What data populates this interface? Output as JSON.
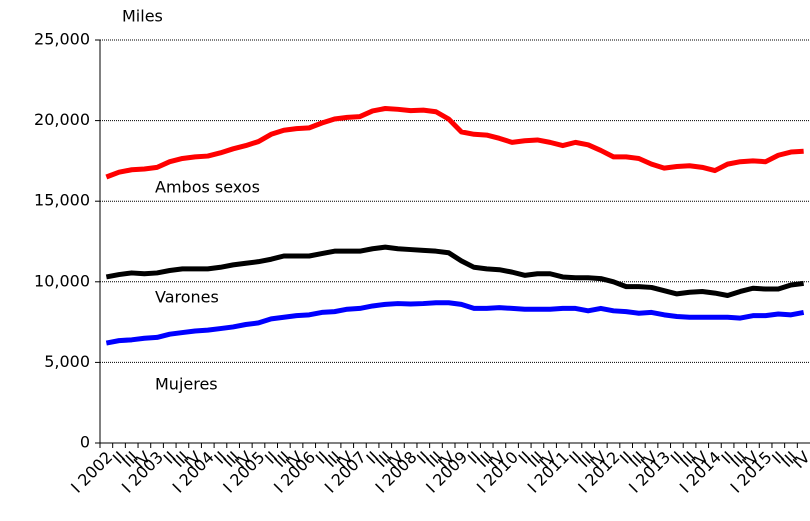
{
  "chart_data": {
    "type": "line",
    "ylabel": "Miles",
    "categories": [
      "I 2002",
      "II",
      "III",
      "IV",
      "I 2003",
      "II",
      "III",
      "IV",
      "I 2004",
      "II",
      "III",
      "IV",
      "I 2005",
      "II",
      "III",
      "IV",
      "I 2006",
      "II",
      "III",
      "IV",
      "I 2007",
      "II",
      "III",
      "IV",
      "I 2008",
      "II",
      "III",
      "IV",
      "I 2009",
      "II",
      "III",
      "IV",
      "I 2010",
      "II",
      "III",
      "IV",
      "I 2011",
      "II",
      "III",
      "IV",
      "I 2012",
      "II",
      "III",
      "IV",
      "I 2013",
      "II",
      "III",
      "IV",
      "I 2014",
      "II",
      "III",
      "IV",
      "I 2015",
      "II",
      "III",
      "IV"
    ],
    "series": [
      {
        "name": "Ambos sexos",
        "color": "#ff0000",
        "values": [
          16500,
          16800,
          16950,
          17000,
          17100,
          17450,
          17650,
          17750,
          17800,
          18000,
          18250,
          18450,
          18700,
          19150,
          19400,
          19500,
          19550,
          19850,
          20100,
          20200,
          20250,
          20600,
          20750,
          20700,
          20620,
          20650,
          20550,
          20100,
          19300,
          19150,
          19100,
          18900,
          18650,
          18750,
          18800,
          18650,
          18450,
          18650,
          18500,
          18150,
          17750,
          17750,
          17650,
          17300,
          17050,
          17150,
          17200,
          17100,
          16900,
          17300,
          17450,
          17500,
          17450,
          17850,
          18050,
          18100
        ]
      },
      {
        "name": "Varones",
        "color": "#000000",
        "values": [
          10300,
          10450,
          10550,
          10500,
          10550,
          10700,
          10800,
          10800,
          10800,
          10900,
          11050,
          11150,
          11250,
          11400,
          11600,
          11600,
          11600,
          11750,
          11900,
          11900,
          11900,
          12050,
          12150,
          12050,
          12000,
          11950,
          11900,
          11800,
          11300,
          10900,
          10800,
          10750,
          10600,
          10400,
          10500,
          10500,
          10300,
          10250,
          10250,
          10200,
          10000,
          9700,
          9700,
          9650,
          9450,
          9250,
          9350,
          9400,
          9300,
          9150,
          9400,
          9600,
          9550,
          9550,
          9800,
          9900
        ]
      },
      {
        "name": "Mujeres",
        "color": "#0000ff",
        "values": [
          6200,
          6350,
          6400,
          6500,
          6550,
          6750,
          6850,
          6950,
          7000,
          7100,
          7200,
          7350,
          7450,
          7700,
          7800,
          7900,
          7950,
          8100,
          8150,
          8300,
          8350,
          8500,
          8600,
          8650,
          8620,
          8650,
          8700,
          8700,
          8600,
          8350,
          8350,
          8400,
          8350,
          8300,
          8300,
          8300,
          8350,
          8350,
          8200,
          8350,
          8200,
          8150,
          8050,
          8100,
          7950,
          7850,
          7800,
          7800,
          7800,
          7800,
          7750,
          7900,
          7900,
          8000,
          7950,
          8100
        ]
      }
    ],
    "ylim": [
      0,
      25000
    ],
    "yticks": [
      0,
      {
        "value": 5000,
        "label": "5,000"
      },
      {
        "value": 10000,
        "label": "10,000"
      },
      {
        "value": 15000,
        "label": "15,000"
      },
      {
        "value": 20000,
        "label": "20,000"
      },
      {
        "value": 25000,
        "label": "25,000"
      }
    ],
    "grid": true
  }
}
